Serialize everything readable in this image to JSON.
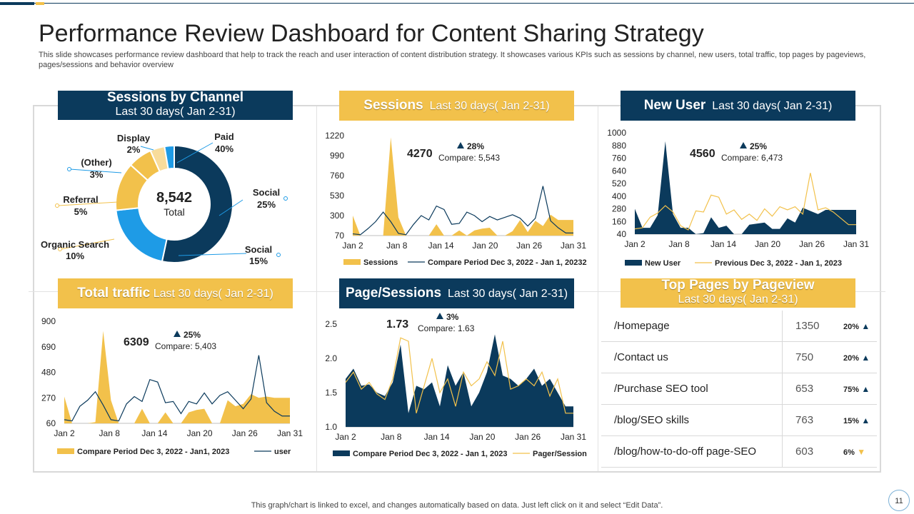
{
  "title": "Performance Review Dashboard for Content Sharing Strategy",
  "subtitle": "This slide showcases performance review dashboard that help to track the reach and user interaction of content distribution strategy. It showcases various KPIs such as sessions by channel, new users, total traffic, top pages by pageviews, pages/sessions and behavior overview",
  "colors": {
    "navy": "#0b3a5c",
    "gold": "#f2c14b",
    "blue": "#1e9be6",
    "lightgold": "#f8dc9b"
  },
  "panels": {
    "sessions_by_channel": {
      "title": "Sessions by Channel",
      "period": "Last 30 days( Jan 2-31)"
    },
    "sessions": {
      "title": "Sessions",
      "period": "Last 30 days( Jan 2-31)"
    },
    "new_user": {
      "title": "New User",
      "period": "Last 30 days( Jan 2-31)"
    },
    "total_traffic": {
      "title": "Total traffic",
      "period": "Last 30 days( Jan 2-31)"
    },
    "page_sessions": {
      "title": "Page/Sessions",
      "period": "Last 30 days( Jan 2-31)"
    },
    "top_pages": {
      "title": "Top Pages by Pageview",
      "period": "Last 30 days( Jan 2-31)"
    }
  },
  "top_pages": [
    {
      "page": "/Homepage",
      "views": "1350",
      "pct": "20%",
      "trend": "up"
    },
    {
      "page": "/Contact us",
      "views": "750",
      "pct": "20%",
      "trend": "up"
    },
    {
      "page": "/Purchase SEO tool",
      "views": "653",
      "pct": "75%",
      "trend": "up"
    },
    {
      "page": "/blog/SEO skills",
      "views": "763",
      "pct": "15%",
      "trend": "up"
    },
    {
      "page": "/blog/how-to-do-off page-SEO",
      "views": "603",
      "pct": "6%",
      "trend": "down"
    }
  ],
  "footer": "This graph/chart is linked to excel,  and changes automatically based on data. Just left click on it and select “Edit Data”.",
  "page_number": "11",
  "chart_data": [
    {
      "id": "channel",
      "type": "pie",
      "title": "Sessions by Channel",
      "center_value": "8,542",
      "center_label": "Total",
      "slices": [
        {
          "label": "Paid",
          "pct": "40%",
          "value": 40,
          "color": "#0b3a5c"
        },
        {
          "label": "Social",
          "pct": "15%",
          "value": 15,
          "color": "#1e9be6"
        },
        {
          "label": "Organic Search",
          "pct": "10%",
          "value": 10,
          "color": "#f2c14b"
        },
        {
          "label": "Referral",
          "pct": "5%",
          "value": 5,
          "color": "#f2c14b"
        },
        {
          "label": "(Other)",
          "pct": "3%",
          "value": 3,
          "color": "#f8dc9b"
        },
        {
          "label": "Display",
          "pct": "2%",
          "value": 2,
          "color": "#1e9be6"
        }
      ],
      "extra_label": {
        "label": "Social",
        "pct": "25%"
      }
    },
    {
      "id": "sessions",
      "type": "area",
      "kpi": {
        "value": "4270",
        "change": "28%",
        "compare": "Compare:  5,543"
      },
      "x_labels": [
        "Jan 2",
        "Jan 8",
        "Jan 14",
        "Jan 20",
        "Jan 26",
        "Jan 31"
      ],
      "y_ticks": [
        "1220",
        "990",
        "760",
        "530",
        "300",
        "70"
      ],
      "ylim": [
        70,
        1220
      ],
      "series": [
        {
          "name": "Sessions",
          "kind": "area",
          "color": "#f2c14b",
          "values": [
            300,
            70,
            70,
            70,
            70,
            1200,
            280,
            70,
            70,
            70,
            70,
            200,
            70,
            70,
            130,
            70,
            130,
            150,
            160,
            70,
            70,
            120,
            250,
            110,
            240,
            180,
            310,
            250,
            250,
            250
          ]
        },
        {
          "name": "Compare Period Dec 3, 2022 - Jan 1, 20232",
          "kind": "line",
          "color": "#0b3a5c",
          "values": [
            90,
            80,
            150,
            230,
            340,
            230,
            95,
            80,
            200,
            300,
            250,
            410,
            370,
            200,
            210,
            340,
            300,
            230,
            290,
            250,
            280,
            310,
            270,
            180,
            270,
            640,
            240,
            160,
            100,
            100
          ]
        }
      ]
    },
    {
      "id": "new_user",
      "type": "area",
      "kpi": {
        "value": "4560",
        "change": "25%",
        "compare": "Compare:  6,473"
      },
      "x_labels": [
        "Jan 2",
        "Jan 8",
        "Jan 14",
        "Jan 20",
        "Jan 26",
        "Jan 31"
      ],
      "y_ticks": [
        "1000",
        "880",
        "760",
        "640",
        "520",
        "400",
        "280",
        "160",
        "40"
      ],
      "ylim": [
        40,
        1000
      ],
      "series": [
        {
          "name": "New User",
          "kind": "area",
          "color": "#0b3a5c",
          "values": [
            280,
            100,
            100,
            220,
            920,
            230,
            100,
            100,
            40,
            50,
            200,
            100,
            120,
            40,
            40,
            130,
            140,
            150,
            90,
            90,
            190,
            150,
            290,
            260,
            230,
            270,
            270,
            270,
            270,
            270
          ]
        },
        {
          "name": "Previous  Dec 3, 2022 - Jan 1, 2023",
          "kind": "line",
          "color": "#f2c14b",
          "values": [
            90,
            100,
            200,
            240,
            310,
            250,
            120,
            80,
            260,
            250,
            410,
            390,
            230,
            270,
            180,
            230,
            170,
            280,
            210,
            300,
            270,
            300,
            230,
            620,
            270,
            290,
            250,
            190,
            130,
            130
          ]
        }
      ]
    },
    {
      "id": "traffic",
      "type": "area",
      "kpi": {
        "value": "6309",
        "change": "25%",
        "compare": "Compare:  5,403"
      },
      "x_labels": [
        "Jan 2",
        "Jan 8",
        "Jan 14",
        "Jan 20",
        "Jan 26",
        "Jan 31"
      ],
      "y_ticks": [
        "900",
        "690",
        "480",
        "270",
        "60"
      ],
      "ylim": [
        60,
        900
      ],
      "series": [
        {
          "name": "Compare Period Dec 3, 2022 - Jan1, 2023",
          "kind": "area",
          "color": "#f2c14b",
          "values": [
            280,
            60,
            60,
            60,
            70,
            820,
            250,
            60,
            60,
            60,
            180,
            60,
            60,
            150,
            60,
            60,
            150,
            170,
            180,
            60,
            60,
            250,
            200,
            220,
            300,
            270,
            280,
            270,
            270,
            270
          ]
        },
        {
          "name": "user",
          "kind": "line",
          "color": "#0b3a5c",
          "values": [
            90,
            80,
            200,
            250,
            320,
            210,
            90,
            80,
            220,
            280,
            240,
            420,
            400,
            230,
            240,
            140,
            240,
            220,
            310,
            220,
            290,
            320,
            250,
            180,
            260,
            620,
            230,
            160,
            120,
            120
          ]
        }
      ]
    },
    {
      "id": "page_sessions",
      "type": "area",
      "kpi": {
        "value": "1.73",
        "change": "3%",
        "compare": "Compare:  1.63"
      },
      "x_labels": [
        "Jan 2",
        "Jan 8",
        "Jan 14",
        "Jan 20",
        "Jan 26",
        "Jan 31"
      ],
      "y_ticks": [
        "2.5",
        "2.0",
        "1.5",
        "1.0"
      ],
      "ylim": [
        1.0,
        2.5
      ],
      "series": [
        {
          "name": "Compare Period Dec 3, 2022 - Jan 1, 2023",
          "kind": "area",
          "color": "#0b3a5c",
          "values": [
            1.7,
            1.85,
            1.6,
            1.62,
            1.5,
            1.45,
            1.65,
            2.2,
            1.2,
            1.6,
            1.55,
            1.65,
            1.3,
            1.9,
            1.6,
            1.8,
            1.3,
            1.5,
            1.8,
            2.35,
            1.75,
            1.7,
            1.6,
            1.7,
            1.85,
            1.6,
            1.7,
            1.5,
            1.3,
            1.3
          ]
        },
        {
          "name": "Pager/Session",
          "kind": "line",
          "color": "#f2c14b",
          "values": [
            1.65,
            1.8,
            1.55,
            1.65,
            1.48,
            1.4,
            1.7,
            2.3,
            2.25,
            1.2,
            1.6,
            2.0,
            1.5,
            1.7,
            1.3,
            1.8,
            1.6,
            1.7,
            1.95,
            1.75,
            2.25,
            1.55,
            1.6,
            1.7,
            1.6,
            1.8,
            1.45,
            1.7,
            1.2,
            1.2
          ]
        }
      ]
    }
  ]
}
